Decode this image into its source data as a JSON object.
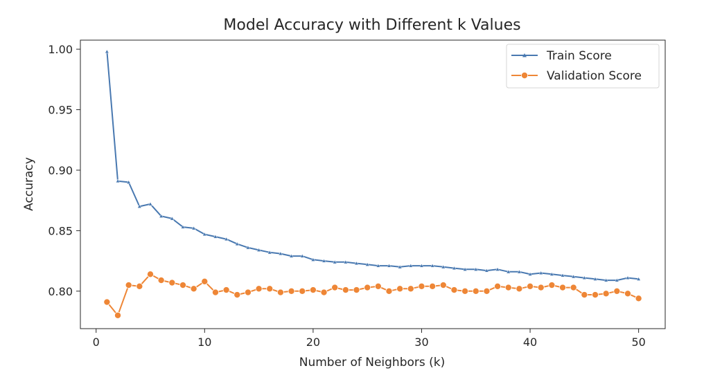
{
  "chart_data": {
    "type": "line",
    "title": "Model Accuracy with Different k Values",
    "xlabel": "Number of Neighbors (k)",
    "ylabel": "Accuracy",
    "xlim": [
      -1.45,
      52.45
    ],
    "ylim": [
      0.769,
      1.0075
    ],
    "xticks": [
      "0",
      "10",
      "20",
      "30",
      "40",
      "50"
    ],
    "yticks": [
      "0.80",
      "0.85",
      "0.90",
      "0.95",
      "1.00"
    ],
    "grid": false,
    "legend_position": "top-right",
    "x": [
      1,
      2,
      3,
      4,
      5,
      6,
      7,
      8,
      9,
      10,
      11,
      12,
      13,
      14,
      15,
      16,
      17,
      18,
      19,
      20,
      21,
      22,
      23,
      24,
      25,
      26,
      27,
      28,
      29,
      30,
      31,
      32,
      33,
      34,
      35,
      36,
      37,
      38,
      39,
      40,
      41,
      42,
      43,
      44,
      45,
      46,
      47,
      48,
      49,
      50
    ],
    "series": [
      {
        "name": "Train Score",
        "color": "#4878b0",
        "marker": "triangle",
        "values": [
          0.998,
          0.891,
          0.89,
          0.87,
          0.872,
          0.862,
          0.86,
          0.853,
          0.852,
          0.847,
          0.845,
          0.843,
          0.839,
          0.836,
          0.834,
          0.832,
          0.831,
          0.829,
          0.829,
          0.826,
          0.825,
          0.824,
          0.824,
          0.823,
          0.822,
          0.821,
          0.821,
          0.82,
          0.821,
          0.821,
          0.821,
          0.82,
          0.819,
          0.818,
          0.818,
          0.817,
          0.818,
          0.816,
          0.816,
          0.814,
          0.815,
          0.814,
          0.813,
          0.812,
          0.811,
          0.81,
          0.809,
          0.809,
          0.811,
          0.81
        ]
      },
      {
        "name": "Validation Score",
        "color": "#ee8636",
        "marker": "circle",
        "values": [
          0.791,
          0.78,
          0.805,
          0.804,
          0.814,
          0.809,
          0.807,
          0.805,
          0.802,
          0.808,
          0.799,
          0.801,
          0.797,
          0.799,
          0.802,
          0.802,
          0.799,
          0.8,
          0.8,
          0.801,
          0.799,
          0.803,
          0.801,
          0.801,
          0.803,
          0.804,
          0.8,
          0.802,
          0.802,
          0.804,
          0.804,
          0.805,
          0.801,
          0.8,
          0.8,
          0.8,
          0.804,
          0.803,
          0.802,
          0.804,
          0.803,
          0.805,
          0.803,
          0.803,
          0.797,
          0.797,
          0.798,
          0.8,
          0.798,
          0.794
        ]
      }
    ]
  }
}
